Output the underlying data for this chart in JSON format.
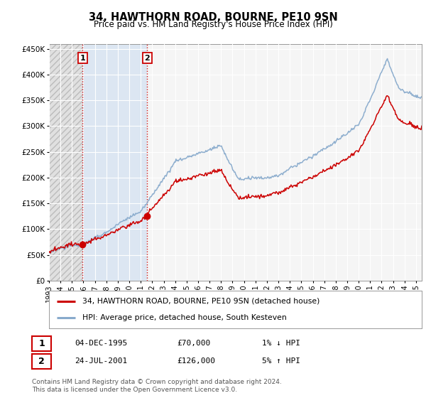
{
  "title": "34, HAWTHORN ROAD, BOURNE, PE10 9SN",
  "subtitle": "Price paid vs. HM Land Registry's House Price Index (HPI)",
  "legend_label_red": "34, HAWTHORN ROAD, BOURNE, PE10 9SN (detached house)",
  "legend_label_blue": "HPI: Average price, detached house, South Kesteven",
  "annotation1_label": "1",
  "annotation1_date": "04-DEC-1995",
  "annotation1_price": "£70,000",
  "annotation1_hpi": "1% ↓ HPI",
  "annotation2_label": "2",
  "annotation2_date": "24-JUL-2001",
  "annotation2_price": "£126,000",
  "annotation2_hpi": "5% ↑ HPI",
  "footnote": "Contains HM Land Registry data © Crown copyright and database right 2024.\nThis data is licensed under the Open Government Licence v3.0.",
  "red_color": "#cc0000",
  "blue_color": "#88aacc",
  "annot_box_color": "#cc0000",
  "hatch_color": "#cccccc",
  "bg_shaded_color": "#ddeeff",
  "plot_bg_color": "#f5f5f5",
  "grid_color": "#ffffff",
  "ylim": [
    0,
    460000
  ],
  "yticks": [
    0,
    50000,
    100000,
    150000,
    200000,
    250000,
    300000,
    350000,
    400000,
    450000
  ],
  "xlim_start": 1993.0,
  "xlim_end": 2025.5,
  "sale1_x": 1995.92,
  "sale1_y": 70000,
  "sale2_x": 2001.56,
  "sale2_y": 126000
}
